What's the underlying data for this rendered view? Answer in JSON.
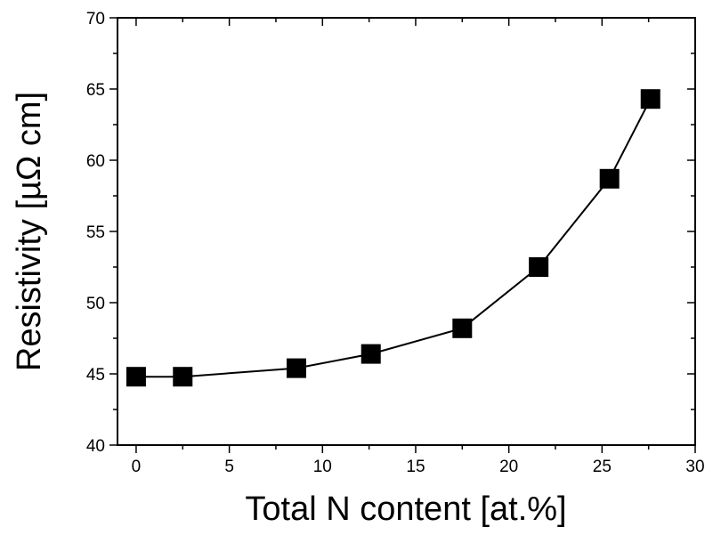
{
  "chart_data": {
    "type": "scatter",
    "title": "",
    "xlabel": "Total N content [at.%]",
    "ylabel": "Resistivity [µΩ cm]",
    "xlim": [
      -1,
      30
    ],
    "ylim": [
      40,
      70
    ],
    "xticks": [
      0,
      5,
      10,
      15,
      20,
      25,
      30
    ],
    "yticks": [
      40,
      45,
      50,
      55,
      60,
      65,
      70
    ],
    "grid": false,
    "legend": "none",
    "marker": "square",
    "line": "solid",
    "color": "#000000",
    "series": [
      {
        "x": [
          0,
          2.5,
          8.6,
          12.6,
          17.5,
          21.6,
          25.4,
          27.6
        ],
        "y": [
          44.8,
          44.8,
          45.4,
          46.4,
          48.2,
          52.5,
          58.7,
          64.3
        ]
      }
    ]
  }
}
